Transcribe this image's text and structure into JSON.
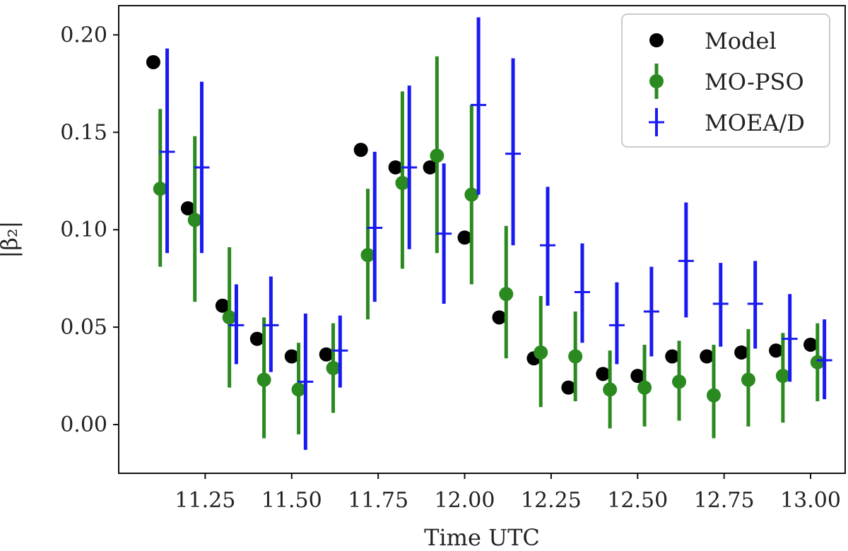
{
  "chart_data": {
    "type": "scatter",
    "title": "",
    "xlabel": "Time UTC",
    "ylabel": "|β₂|",
    "xlim": [
      11.0,
      13.1
    ],
    "ylim": [
      -0.025,
      0.215
    ],
    "xticks": [
      11.25,
      11.5,
      11.75,
      12.0,
      12.25,
      12.5,
      12.75,
      13.0
    ],
    "xtick_labels": [
      "11.25",
      "11.50",
      "11.75",
      "12.00",
      "12.25",
      "12.50",
      "12.75",
      "13.00"
    ],
    "yticks": [
      0.0,
      0.05,
      0.1,
      0.15,
      0.2
    ],
    "ytick_labels": [
      "0.00",
      "0.05",
      "0.10",
      "0.15",
      "0.20"
    ],
    "grid": false,
    "legend_position": "top-right",
    "series": [
      {
        "name": "Model",
        "color": "#000000",
        "marker": "circle",
        "x": [
          11.1,
          11.2,
          11.3,
          11.4,
          11.5,
          11.6,
          11.7,
          11.8,
          11.9,
          12.0,
          12.1,
          12.2,
          12.3,
          12.4,
          12.5,
          12.6,
          12.7,
          12.8,
          12.9,
          13.0
        ],
        "y": [
          0.186,
          0.111,
          0.061,
          0.044,
          0.035,
          0.036,
          0.141,
          0.132,
          0.132,
          0.096,
          0.055,
          0.034,
          0.019,
          0.026,
          0.025,
          0.035,
          0.035,
          0.037,
          0.038,
          0.041
        ]
      },
      {
        "name": "MO-PSO",
        "color": "#2a8a1f",
        "marker": "circle-errorbar",
        "x": [
          11.12,
          11.22,
          11.32,
          11.42,
          11.52,
          11.62,
          11.72,
          11.82,
          11.92,
          12.02,
          12.12,
          12.22,
          12.32,
          12.42,
          12.52,
          12.62,
          12.72,
          12.82,
          12.92,
          13.02
        ],
        "y": [
          0.121,
          0.105,
          0.055,
          0.023,
          0.018,
          0.029,
          0.087,
          0.124,
          0.138,
          0.118,
          0.067,
          0.037,
          0.035,
          0.018,
          0.019,
          0.022,
          0.015,
          0.023,
          0.025,
          0.032
        ],
        "ylow": [
          0.081,
          0.063,
          0.019,
          -0.007,
          -0.005,
          0.006,
          0.054,
          0.08,
          0.088,
          0.072,
          0.034,
          0.009,
          0.012,
          -0.002,
          -0.001,
          0.002,
          -0.007,
          -0.001,
          0.001,
          0.012
        ],
        "yhigh": [
          0.162,
          0.148,
          0.091,
          0.055,
          0.042,
          0.052,
          0.121,
          0.171,
          0.189,
          0.164,
          0.102,
          0.066,
          0.058,
          0.038,
          0.041,
          0.043,
          0.041,
          0.049,
          0.047,
          0.052
        ]
      },
      {
        "name": "MOEA/D",
        "color": "#1a1af0",
        "marker": "plus-errorbar",
        "x": [
          11.14,
          11.24,
          11.34,
          11.44,
          11.54,
          11.64,
          11.74,
          11.84,
          11.94,
          12.04,
          12.14,
          12.24,
          12.34,
          12.44,
          12.54,
          12.64,
          12.74,
          12.84,
          12.94,
          13.04
        ],
        "y": [
          0.14,
          0.132,
          0.051,
          0.051,
          0.022,
          0.038,
          0.101,
          0.132,
          0.098,
          0.164,
          0.139,
          0.092,
          0.068,
          0.051,
          0.058,
          0.084,
          0.062,
          0.062,
          0.044,
          0.033
        ],
        "ylow": [
          0.088,
          0.088,
          0.031,
          0.027,
          -0.013,
          0.019,
          0.063,
          0.09,
          0.062,
          0.118,
          0.092,
          0.061,
          0.042,
          0.031,
          0.035,
          0.055,
          0.04,
          0.039,
          0.022,
          0.013
        ],
        "yhigh": [
          0.193,
          0.176,
          0.072,
          0.076,
          0.057,
          0.056,
          0.14,
          0.174,
          0.134,
          0.209,
          0.188,
          0.122,
          0.093,
          0.073,
          0.081,
          0.114,
          0.083,
          0.084,
          0.067,
          0.054
        ]
      }
    ]
  }
}
